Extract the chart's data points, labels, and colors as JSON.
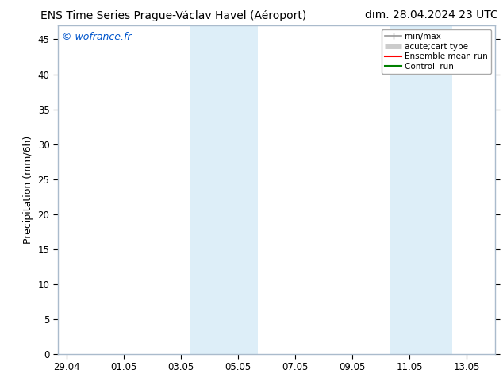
{
  "title_left": "ENS Time Series Prague-Václav Havel (Aéroport)",
  "title_right": "dim. 28.04.2024 23 UTC",
  "ylabel": "Precipitation (mm/6h)",
  "watermark": "© wofrance.fr",
  "watermark_color": "#0055cc",
  "ylim": [
    0,
    47
  ],
  "yticks": [
    0,
    5,
    10,
    15,
    20,
    25,
    30,
    35,
    40,
    45
  ],
  "xtick_labels": [
    "29.04",
    "01.05",
    "03.05",
    "05.05",
    "07.05",
    "09.05",
    "11.05",
    "13.05"
  ],
  "xtick_positions": [
    0,
    2,
    4,
    6,
    8,
    10,
    12,
    14
  ],
  "xmin": -0.3,
  "xmax": 15.0,
  "shaded_regions": [
    {
      "xmin": 4.3,
      "xmax": 6.7,
      "color": "#ddeef8"
    },
    {
      "xmin": 11.3,
      "xmax": 13.5,
      "color": "#ddeef8"
    }
  ],
  "legend_entries": [
    {
      "label": "min/max",
      "color": "#999999",
      "lw": 1.2,
      "style": "line_with_caps"
    },
    {
      "label": "acute;cart type",
      "color": "#cccccc",
      "lw": 5,
      "style": "thick"
    },
    {
      "label": "Ensemble mean run",
      "color": "#ff0000",
      "lw": 1.5,
      "style": "line"
    },
    {
      "label": "Controll run",
      "color": "#008000",
      "lw": 1.5,
      "style": "line"
    }
  ],
  "spine_color": "#aabbcc",
  "bg_color": "#ffffff",
  "plot_bg_color": "#ffffff",
  "title_fontsize": 10,
  "label_fontsize": 9,
  "tick_fontsize": 8.5,
  "legend_fontsize": 7.5
}
